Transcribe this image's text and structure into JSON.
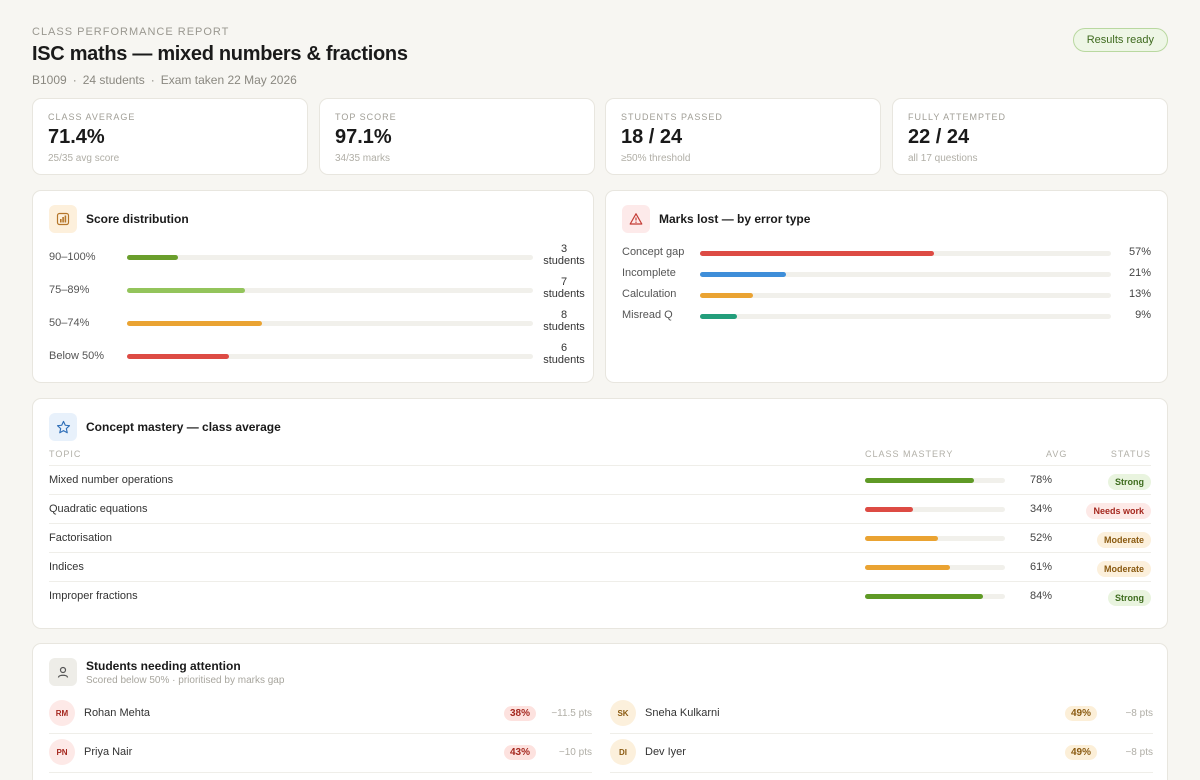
{
  "header": {
    "eyebrow": "CLASS PERFORMANCE REPORT",
    "title": "ISC maths — mixed numbers & fractions",
    "batch": "B1009",
    "students": "24 students",
    "exam": "Exam taken 22 May 2026",
    "status": "Results ready"
  },
  "stats": [
    {
      "label": "CLASS AVERAGE",
      "value": "71.4%",
      "sub": "25/35 avg score"
    },
    {
      "label": "TOP SCORE",
      "value": "97.1%",
      "sub": "34/35 marks"
    },
    {
      "label": "STUDENTS PASSED",
      "value": "18 / 24",
      "sub": "≥50% threshold"
    },
    {
      "label": "FULLY ATTEMPTED",
      "value": "22 / 24",
      "sub": "all 17 questions"
    }
  ],
  "distribution": {
    "title": "Score distribution",
    "total": 24,
    "icon": "bar-chart-icon",
    "rows": [
      {
        "range": "90–100%",
        "count": 3,
        "count_label": "3",
        "unit": "students",
        "color": "#6a9e2c"
      },
      {
        "range": "75–89%",
        "count": 7,
        "count_label": "7",
        "unit": "students",
        "color": "#93c45b"
      },
      {
        "range": "50–74%",
        "count": 8,
        "count_label": "8",
        "unit": "students",
        "color": "#eaa332"
      },
      {
        "range": "Below 50%",
        "count": 6,
        "count_label": "6",
        "unit": "students",
        "color": "#dd4b44"
      }
    ]
  },
  "errors": {
    "title": "Marks lost — by error type",
    "icon": "warning-icon",
    "rows": [
      {
        "label": "Concept gap",
        "value": 57,
        "pct": "57%",
        "color": "#dd4b44"
      },
      {
        "label": "Incomplete",
        "value": 21,
        "pct": "21%",
        "color": "#3e8ed9"
      },
      {
        "label": "Calculation",
        "value": 13,
        "pct": "13%",
        "color": "#eaa332"
      },
      {
        "label": "Misread Q",
        "value": 9,
        "pct": "9%",
        "color": "#239e7b"
      }
    ]
  },
  "mastery": {
    "title": "Concept mastery — class average",
    "icon": "star-icon",
    "columns": {
      "topic": "TOPIC",
      "mastery": "CLASS MASTERY",
      "avg": "AVG",
      "status": "STATUS"
    },
    "rows": [
      {
        "topic": "Mixed number operations",
        "value": 78,
        "avg": "78%",
        "status": "Strong",
        "kind": "strong",
        "color": "#5f9a26"
      },
      {
        "topic": "Quadratic equations",
        "value": 34,
        "avg": "34%",
        "status": "Needs work",
        "kind": "needs",
        "color": "#dd4b44"
      },
      {
        "topic": "Factorisation",
        "value": 52,
        "avg": "52%",
        "status": "Moderate",
        "kind": "moderate",
        "color": "#eaa332"
      },
      {
        "topic": "Indices",
        "value": 61,
        "avg": "61%",
        "status": "Moderate",
        "kind": "moderate",
        "color": "#eaa332"
      },
      {
        "topic": "Improper fractions",
        "value": 84,
        "avg": "84%",
        "status": "Strong",
        "kind": "strong",
        "color": "#5f9a26"
      }
    ]
  },
  "attention": {
    "title": "Students needing attention",
    "subtitle": "Scored below 50% · prioritised by marks gap",
    "icon": "user-icon",
    "students": [
      {
        "initials": "RM",
        "name": "Rohan Mehta",
        "score": "38%",
        "gap": "−11.5 pts",
        "tone": "red"
      },
      {
        "initials": "SK",
        "name": "Sneha Kulkarni",
        "score": "49%",
        "gap": "−8 pts",
        "tone": "amber"
      },
      {
        "initials": "PN",
        "name": "Priya Nair",
        "score": "43%",
        "gap": "−10 pts",
        "tone": "red"
      },
      {
        "initials": "DI",
        "name": "Dev Iyer",
        "score": "49%",
        "gap": "−8 pts",
        "tone": "amber"
      }
    ]
  }
}
